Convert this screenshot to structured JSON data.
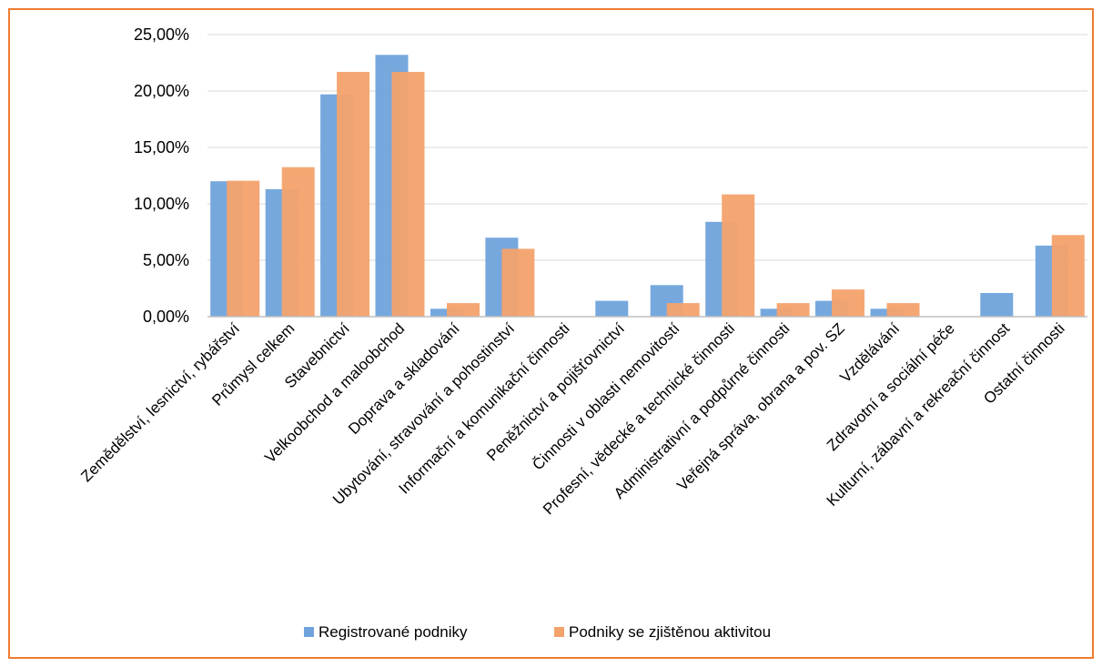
{
  "chart_data": {
    "type": "bar",
    "title": "",
    "xlabel": "",
    "ylabel": "",
    "ylim": [
      0,
      25
    ],
    "yticks": [
      0,
      5,
      10,
      15,
      20,
      25
    ],
    "ytick_labels": [
      "0,00%",
      "5,00%",
      "10,00%",
      "15,00%",
      "20,00%",
      "25,00%"
    ],
    "grid": "horizontal",
    "legend_position": "bottom",
    "categories": [
      "Zemědělství, lesnictví, rybářství",
      "Průmysl celkem",
      "Stavebnictví",
      "Velkoobchod a maloobchod",
      "Doprava a skladování",
      "Ubytování, stravování a pohostinství",
      "Informační a komunikační činnosti",
      "Peněžnictví a pojišťovnictví",
      "Činnosti v oblasti nemovitostí",
      "Profesní, vědecké a technické činnosti",
      "Administrativní a podpůrné činnosti",
      "Veřejná správa, obrana a pov. SZ",
      "Vzdělávání",
      "Zdravotní a sociální péče",
      "Kulturní, zábavní a rekreační činnost",
      "Ostatní činnosti"
    ],
    "series": [
      {
        "name": "Registrované podniky",
        "color": "#6FA3DC",
        "values": [
          12.0,
          11.3,
          19.7,
          23.2,
          0.7,
          7.0,
          0.0,
          1.4,
          2.8,
          8.4,
          0.7,
          1.4,
          0.7,
          0.0,
          2.1,
          6.3
        ]
      },
      {
        "name": "Podniky se zjištěnou aktivitou",
        "color": "#F4A26C",
        "values": [
          12.05,
          13.25,
          21.69,
          21.69,
          1.2,
          6.02,
          0.0,
          0.0,
          1.2,
          10.84,
          1.2,
          2.41,
          1.2,
          0.0,
          0.0,
          7.23
        ]
      }
    ]
  },
  "colors": {
    "frame_border": "#ED7D31",
    "gridline": "#D9D9D9",
    "axis": "#BFBFBF"
  }
}
